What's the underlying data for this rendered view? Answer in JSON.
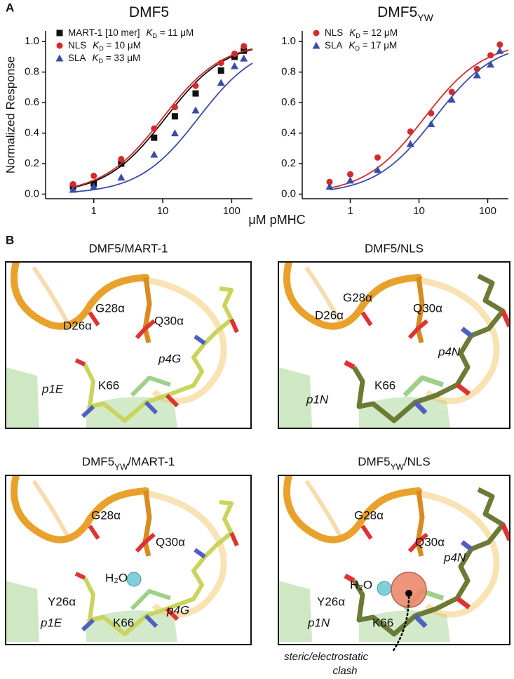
{
  "panel_a": {
    "label": "A",
    "x_label": "μM pMHC"
  },
  "chart_data": [
    {
      "type": "scatter",
      "title": "DMF5",
      "y_label": "Normalized Response",
      "x_scale": "log",
      "xlim": [
        0.2,
        200
      ],
      "xticks": [
        1,
        10,
        100
      ],
      "ylim": [
        -0.03,
        1.07
      ],
      "yticks": [
        {
          "value": 0,
          "label": "0.0"
        },
        0.2,
        0.4,
        0.6,
        0.8,
        {
          "value": 1,
          "label": "1.0"
        }
      ],
      "legend": "upper left",
      "x": [
        0.5,
        1,
        2.5,
        7.5,
        15,
        30,
        70,
        110,
        150
      ],
      "series": [
        {
          "name": "MART-1 [10 mer]",
          "color": "#111111",
          "marker": "square",
          "kd": 11,
          "kd_label": {
            "symbol": "K",
            "sub": "D",
            "text": " = 11 μM"
          },
          "values": [
            0.05,
            0.07,
            0.2,
            0.37,
            0.51,
            0.66,
            0.81,
            0.9,
            0.94
          ]
        },
        {
          "name": "NLS",
          "color": "#d42a2a",
          "marker": "circle",
          "kd": 10,
          "kd_label": {
            "symbol": "K",
            "sub": "D",
            "text": " = 10 μM"
          },
          "values": [
            0.065,
            0.12,
            0.23,
            0.43,
            0.57,
            0.71,
            0.86,
            0.92,
            0.97
          ]
        },
        {
          "name": "SLA",
          "color": "#3a4ca8",
          "marker": "triangle",
          "kd": 33,
          "kd_label": {
            "symbol": "K",
            "sub": "D",
            "text": " = 33 μM"
          },
          "values": [
            0.03,
            0.05,
            0.11,
            0.26,
            0.4,
            0.55,
            0.73,
            0.84,
            0.89
          ]
        }
      ]
    },
    {
      "type": "scatter",
      "title": "DMF5",
      "title_subscript": "YW",
      "x_scale": "log",
      "xlim": [
        0.2,
        200
      ],
      "xticks": [
        1,
        10,
        100
      ],
      "ylim": [
        -0.03,
        1.07
      ],
      "yticks": [
        {
          "value": 0,
          "label": "0.0"
        },
        0.2,
        0.4,
        0.6,
        0.8,
        {
          "value": 1,
          "label": "1.0"
        }
      ],
      "legend": "upper left",
      "x": [
        0.5,
        1,
        2.5,
        7.5,
        15,
        30,
        70,
        110,
        150
      ],
      "series": [
        {
          "name": "NLS",
          "color": "#d42a2a",
          "marker": "circle",
          "kd": 12,
          "kd_label": {
            "symbol": "K",
            "sub": "D",
            "text": " = 12 μM"
          },
          "values": [
            0.08,
            0.13,
            0.24,
            0.41,
            0.53,
            0.67,
            0.82,
            0.91,
            0.98
          ]
        },
        {
          "name": "SLA",
          "color": "#3a4ca8",
          "marker": "triangle",
          "kd": 17,
          "kd_label": {
            "symbol": "K",
            "sub": "D",
            "text": " = 17 μM"
          },
          "values": [
            0.05,
            0.09,
            0.16,
            0.33,
            0.46,
            0.62,
            0.78,
            0.85,
            0.94
          ]
        }
      ]
    }
  ],
  "panel_b": {
    "label": "B",
    "panels": [
      {
        "title": "DMF5/MART-1",
        "labels": [
          "G28α",
          "D26α",
          "Q30α",
          "p4G",
          "K66",
          "p1E"
        ]
      },
      {
        "title": "DMF5/NLS",
        "labels": [
          "G28α",
          "D26α",
          "Q30α",
          "p4N",
          "K66",
          "p1N"
        ]
      },
      {
        "title": {
          "main": "DMF5",
          "sub": "YW",
          "rest": "/MART-1"
        },
        "labels": [
          "G28α",
          "Q30α",
          "H₂O",
          "Y26α",
          "p4G",
          "K66",
          "p1E"
        ]
      },
      {
        "title": {
          "main": "DMF5",
          "sub": "YW",
          "rest": "/NLS"
        },
        "labels": [
          "G28α",
          "Q30α",
          "p4N",
          "H₂O",
          "Y26α",
          "K66",
          "p1N"
        ]
      }
    ],
    "annotation": [
      "steric/electrostatic",
      "clash"
    ]
  }
}
